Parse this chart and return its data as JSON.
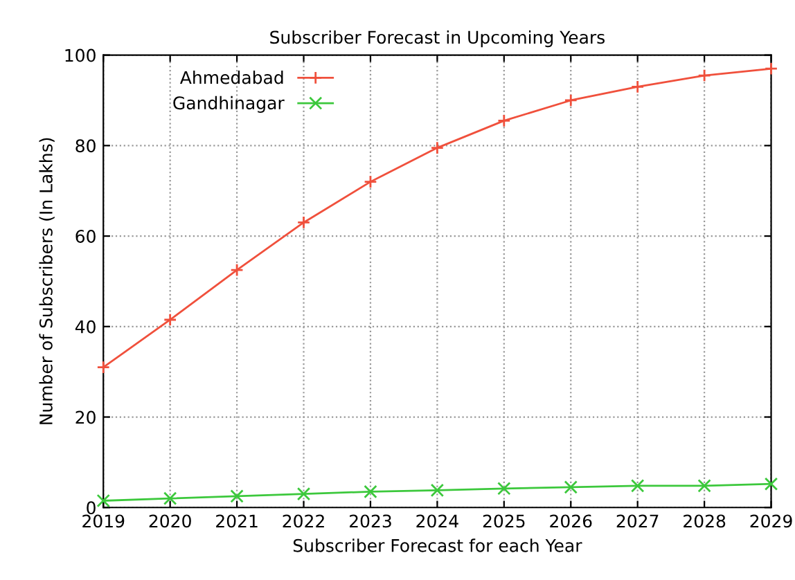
{
  "chart_data": {
    "type": "line",
    "title": "Subscriber Forecast in Upcoming Years",
    "xlabel": "Subscriber Forecast for each Year",
    "ylabel": "Number of Subscribers (In Lakhs)",
    "x": [
      2019,
      2020,
      2021,
      2022,
      2023,
      2024,
      2025,
      2026,
      2027,
      2028,
      2029
    ],
    "series": [
      {
        "name": "Ahmedabad",
        "color": "#f0503c",
        "marker": "plus",
        "values": [
          31,
          41.5,
          52.5,
          63,
          72,
          79.5,
          85.5,
          90,
          93,
          95.5,
          97
        ]
      },
      {
        "name": "Gandhinagar",
        "color": "#3cc83c",
        "marker": "cross",
        "values": [
          1.5,
          2,
          2.5,
          3,
          3.5,
          3.8,
          4.2,
          4.5,
          4.8,
          4.8,
          5.2
        ]
      }
    ],
    "xlim": [
      2019,
      2029
    ],
    "xticks": [
      2019,
      2020,
      2021,
      2022,
      2023,
      2024,
      2025,
      2026,
      2027,
      2028,
      2029
    ],
    "ylim": [
      0,
      100
    ],
    "yticks": [
      0,
      20,
      40,
      60,
      80,
      100
    ],
    "grid": true,
    "legend": "top left",
    "line_style": "solid"
  }
}
